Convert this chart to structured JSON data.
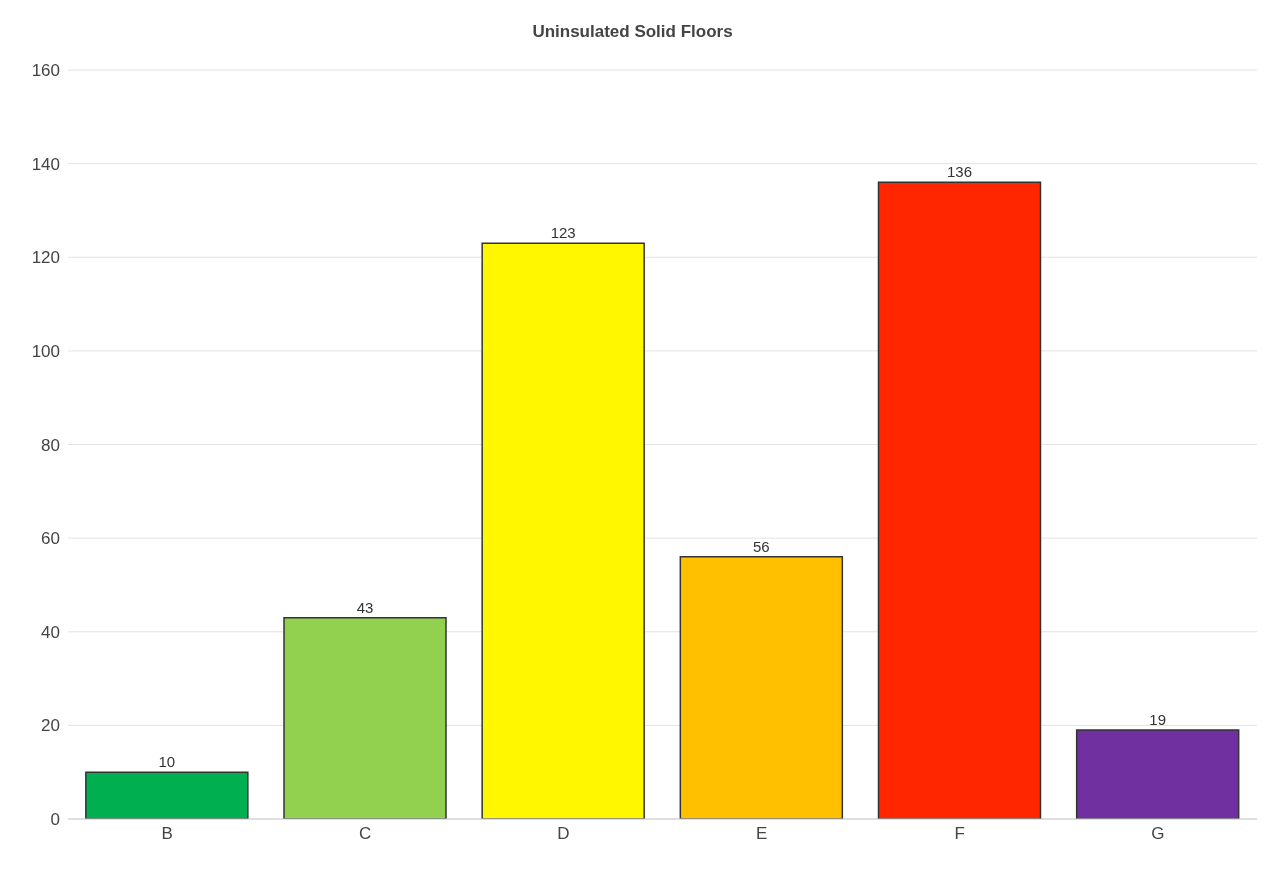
{
  "chart_data": {
    "type": "bar",
    "title": "Uninsulated Solid Floors",
    "categories": [
      "B",
      "C",
      "D",
      "E",
      "F",
      "G"
    ],
    "values": [
      10,
      43,
      123,
      56,
      136,
      19
    ],
    "colors": [
      "#00b050",
      "#92d050",
      "#fff700",
      "#ffc000",
      "#ff2600",
      "#7030a0"
    ],
    "ylim": [
      0,
      160
    ],
    "yticks": [
      0,
      20,
      40,
      60,
      80,
      100,
      120,
      140,
      160
    ],
    "grid": "y",
    "data_labels": true
  }
}
